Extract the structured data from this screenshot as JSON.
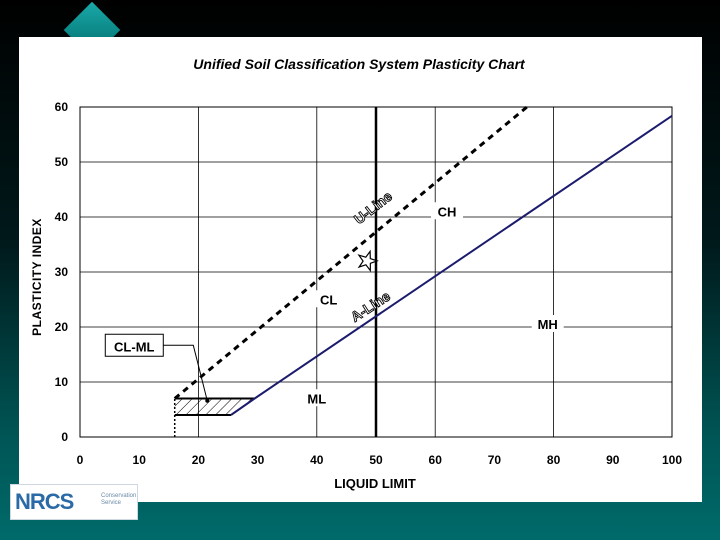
{
  "chart_data": {
    "type": "line",
    "title": "Unified Soil Classification System Plasticity Chart",
    "xlabel": "LIQUID LIMIT",
    "ylabel": "PLASTICITY INDEX",
    "xlim": [
      0,
      100
    ],
    "ylim": [
      0,
      60
    ],
    "xticks": [
      "0",
      "10",
      "20",
      "30",
      "40",
      "50",
      "60",
      "70",
      "80",
      "90",
      "100"
    ],
    "yticks": [
      "0",
      "10",
      "20",
      "30",
      "40",
      "50",
      "60"
    ],
    "grid": true,
    "series": [
      {
        "name": "U-Line",
        "style": "dashed",
        "points": [
          [
            16,
            7
          ],
          [
            75.5,
            60
          ]
        ]
      },
      {
        "name": "A-Line",
        "style": "solid",
        "points": [
          [
            25.5,
            4
          ],
          [
            29.5,
            7
          ],
          [
            100,
            58.4
          ]
        ]
      }
    ],
    "lines": {
      "ll_50": {
        "x": 50,
        "y": [
          0,
          60
        ]
      },
      "pi_7": {
        "x": [
          16,
          29.5
        ],
        "y": 7
      },
      "pi_4": {
        "x": [
          16,
          25.5
        ],
        "y": 4
      },
      "ll_16_dotted": {
        "x": 16,
        "y": [
          0,
          7
        ]
      }
    },
    "hatched_zone": {
      "label": "CL-ML",
      "polygon": [
        [
          16,
          4
        ],
        [
          25.5,
          4
        ],
        [
          29.5,
          7
        ],
        [
          16,
          7
        ]
      ]
    },
    "zone_labels": [
      {
        "text": "CH",
        "x": 62,
        "y": 40.5
      },
      {
        "text": "CL",
        "x": 42,
        "y": 24.5
      },
      {
        "text": "MH",
        "x": 79,
        "y": 20
      },
      {
        "text": "ML",
        "x": 40,
        "y": 6.5
      },
      {
        "text": "CL-ML",
        "x": 9,
        "y": 16.5
      }
    ],
    "line_labels": [
      {
        "text": "U-Line",
        "x": 50,
        "y": 41
      },
      {
        "text": "A-Line",
        "x": 49.5,
        "y": 23
      }
    ],
    "star_marker": {
      "x": 48.5,
      "y": 32
    }
  },
  "colors": {
    "a_line": "#1c1c6e",
    "u_line": "#000000",
    "grid": "#000000",
    "background": "#ffffff"
  },
  "logo": {
    "mark": "NRCS",
    "subtext": "Conservation Service"
  }
}
